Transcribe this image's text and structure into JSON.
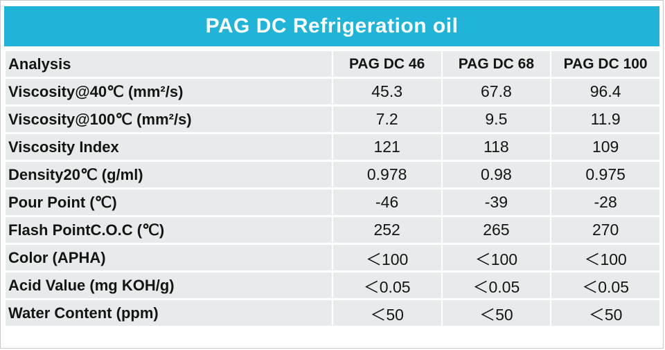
{
  "title": "PAG DC Refrigeration oil",
  "colors": {
    "header_bg": "#1fb4d8",
    "row_bg": "#e8ebeb",
    "title_text": "#ffffff",
    "body_text": "#141414"
  },
  "table": {
    "columns": [
      "Analysis",
      "PAG DC 46",
      "PAG DC 68",
      "PAG DC 100"
    ],
    "rows": [
      {
        "label": "Viscosity@40℃ (mm²/s)",
        "values": [
          "45.3",
          "67.8",
          "96.4"
        ]
      },
      {
        "label": "Viscosity@100℃ (mm²/s)",
        "values": [
          "7.2",
          "9.5",
          "11.9"
        ]
      },
      {
        "label": "Viscosity Index",
        "values": [
          "121",
          "118",
          "109"
        ]
      },
      {
        "label": "Density20℃ (g/ml)",
        "values": [
          "0.978",
          "0.98",
          "0.975"
        ]
      },
      {
        "label": "Pour Point (℃)",
        "values": [
          "-46",
          "-39",
          "-28"
        ]
      },
      {
        "label": "Flash PointC.O.C (℃)",
        "values": [
          "252",
          "265",
          "270"
        ]
      },
      {
        "label": "Color (APHA)",
        "values": [
          "＜100",
          "＜100",
          "＜100"
        ]
      },
      {
        "label": "Acid Value (mg KOH/g)",
        "values": [
          "＜0.05",
          "＜0.05",
          "＜0.05"
        ]
      },
      {
        "label": "Water Content (ppm)",
        "values": [
          "＜50",
          "＜50",
          "＜50"
        ]
      }
    ]
  }
}
